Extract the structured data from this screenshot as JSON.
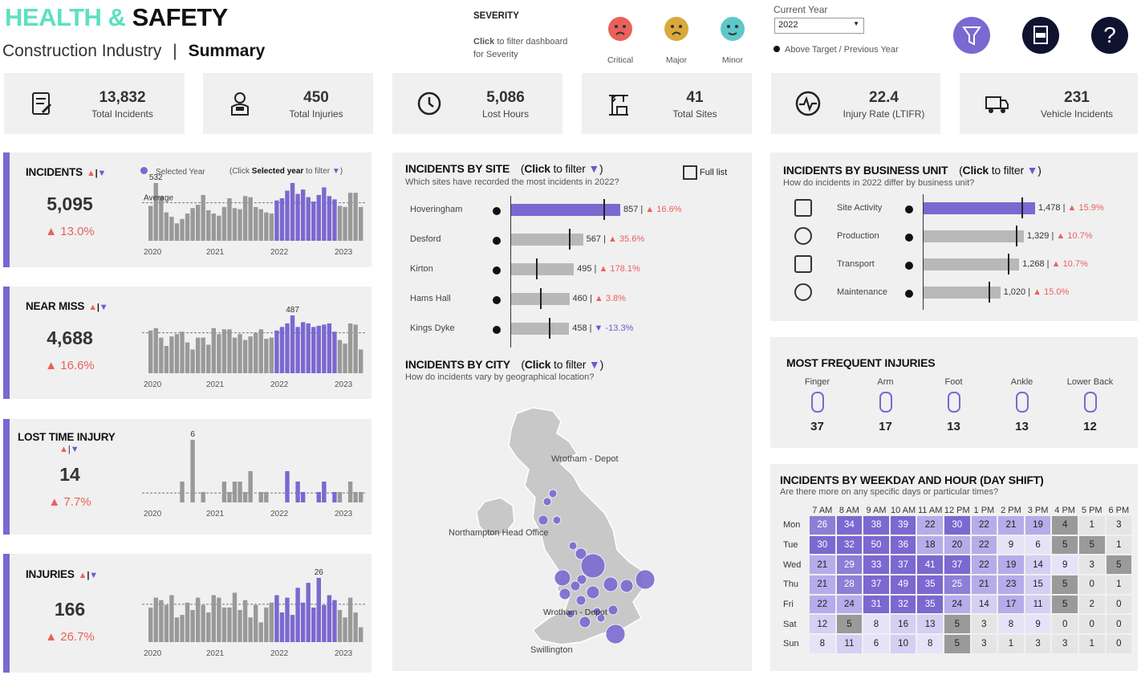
{
  "header": {
    "title_a": "HEALTH",
    "title_amp": "&",
    "title_b": "SAFETY",
    "subtitle": "Construction Industry",
    "sep": "|",
    "page": "Summary"
  },
  "severity": {
    "title": "SEVERITY",
    "help_bold": "Click",
    "help_rest": " to filter dashboard",
    "help_line2": "for Severity",
    "items": [
      {
        "label": "Critical",
        "color": "#e9615b"
      },
      {
        "label": "Major",
        "color": "#d9a93a"
      },
      {
        "label": "Minor",
        "color": "#5ec8c8"
      }
    ]
  },
  "year": {
    "label": "Current Year",
    "value": "2022",
    "legend": "Above Target / Previous Year"
  },
  "icons": {
    "filter": "filter-icon",
    "pdf": "pdf-icon",
    "help": "help-icon"
  },
  "kpis": [
    {
      "value": "13,832",
      "label": "Total Incidents",
      "icon": "report-icon"
    },
    {
      "value": "450",
      "label": "Total Injuries",
      "icon": "injured-worker-icon"
    },
    {
      "value": "5,086",
      "label": "Lost Hours",
      "icon": "clock-icon"
    },
    {
      "value": "41",
      "label": "Total Sites",
      "icon": "crane-icon"
    },
    {
      "value": "22.4",
      "label": "Injury Rate (LTIFR)",
      "icon": "pulse-icon"
    },
    {
      "value": "231",
      "label": "Vehicle Incidents",
      "icon": "truck-icon"
    }
  ],
  "left_panels": [
    {
      "title": "INCIDENTS",
      "value": "5,095",
      "pct": "13.0%",
      "peak": "532",
      "avg_label": "Average",
      "legend": "Selected Year",
      "hint_a": "(Click ",
      "hint_b": "Selected year",
      "hint_c": " to filter "
    },
    {
      "title": "NEAR MISS",
      "value": "4,688",
      "pct": "16.6%",
      "peak": "487"
    },
    {
      "title": "LOST TIME INJURY",
      "value": "14",
      "pct": "7.7%",
      "peak": "6"
    },
    {
      "title": "INJURIES",
      "value": "166",
      "pct": "26.7%",
      "peak": "26"
    }
  ],
  "years": [
    "2020",
    "2021",
    "2022",
    "2023"
  ],
  "arrows": {
    "up": "▲",
    "sep": "|",
    "down": "▼"
  },
  "chart_data": [
    {
      "type": "bar",
      "title": "INCIDENTS",
      "x": "monthly",
      "highlight_year": "2022",
      "values": [
        320,
        530,
        410,
        260,
        220,
        160,
        200,
        250,
        300,
        330,
        420,
        280,
        250,
        230,
        310,
        390,
        300,
        290,
        410,
        400,
        310,
        290,
        260,
        250,
        370,
        390,
        460,
        530,
        430,
        470,
        400,
        360,
        420,
        490,
        410,
        380,
        320,
        310,
        440,
        440,
        310
      ]
    },
    {
      "type": "bar",
      "title": "NEAR MISS",
      "values": [
        360,
        380,
        300,
        230,
        310,
        330,
        350,
        260,
        200,
        300,
        300,
        240,
        380,
        330,
        370,
        370,
        300,
        330,
        280,
        310,
        340,
        370,
        290,
        300,
        360,
        390,
        420,
        487,
        390,
        430,
        420,
        390,
        400,
        410,
        420,
        350,
        280,
        250,
        420,
        410,
        200
      ]
    },
    {
      "type": "bar",
      "title": "LOST TIME INJURY",
      "values": [
        0,
        0,
        0,
        0,
        0,
        0,
        2,
        0,
        6,
        0,
        1,
        0,
        0,
        0,
        2,
        1,
        2,
        2,
        1,
        3,
        0,
        1,
        1,
        0,
        0,
        0,
        3,
        0,
        2,
        1,
        0,
        0,
        1,
        2,
        0,
        1,
        1,
        0,
        2,
        1,
        1
      ]
    },
    {
      "type": "bar",
      "title": "INJURIES",
      "values": [
        14,
        18,
        17,
        15,
        19,
        10,
        11,
        16,
        13,
        18,
        15,
        12,
        19,
        18,
        14,
        14,
        20,
        13,
        17,
        10,
        15,
        8,
        14,
        16,
        19,
        12,
        18,
        11,
        22,
        16,
        24,
        14,
        26,
        15,
        19,
        17,
        13,
        10,
        18,
        12,
        6
      ]
    },
    {
      "type": "bar",
      "title": "INCIDENTS BY SITE",
      "categories": [
        "Hoveringham",
        "Desford",
        "Kirton",
        "Hams Hall",
        "Kings Dyke"
      ],
      "values": [
        857,
        567,
        495,
        460,
        458
      ],
      "change": [
        "16.6%",
        "35.6%",
        "178.1%",
        "3.8%",
        "-13.3%"
      ],
      "labels": [
        "857",
        "567",
        "495",
        "460",
        "458"
      ]
    },
    {
      "type": "bar",
      "title": "INCIDENTS BY BUSINESS UNIT",
      "categories": [
        "Site Activity",
        "Production",
        "Transport",
        "Maintenance"
      ],
      "values": [
        1478,
        1329,
        1268,
        1020
      ],
      "change": [
        "15.9%",
        "10.7%",
        "10.7%",
        "15.0%"
      ],
      "labels": [
        "1,478",
        "1,329",
        "1,268",
        "1,020"
      ]
    },
    {
      "type": "heatmap",
      "title": "INCIDENTS BY WEEKDAY AND HOUR  (DAY SHIFT)",
      "columns": [
        "7 AM",
        "8 AM",
        "9 AM",
        "10 AM",
        "11 AM",
        "12 PM",
        "1 PM",
        "2 PM",
        "3 PM",
        "4 PM",
        "5 PM",
        "6 PM"
      ],
      "rows": [
        "Mon",
        "Tue",
        "Wed",
        "Thu",
        "Fri",
        "Sat",
        "Sun"
      ],
      "values": [
        [
          26,
          34,
          38,
          39,
          22,
          30,
          22,
          21,
          19,
          4,
          1,
          3
        ],
        [
          30,
          32,
          50,
          36,
          18,
          20,
          22,
          9,
          6,
          5,
          5,
          1
        ],
        [
          21,
          29,
          33,
          37,
          41,
          37,
          22,
          19,
          14,
          9,
          3,
          5
        ],
        [
          21,
          28,
          37,
          49,
          35,
          25,
          21,
          23,
          15,
          5,
          0,
          1
        ],
        [
          22,
          24,
          31,
          32,
          35,
          24,
          14,
          17,
          11,
          5,
          2,
          0
        ],
        [
          12,
          5,
          8,
          16,
          13,
          5,
          3,
          8,
          9,
          0,
          0,
          0
        ],
        [
          8,
          11,
          6,
          10,
          8,
          5,
          3,
          1,
          3,
          3,
          1,
          0
        ]
      ]
    }
  ],
  "site": {
    "title": "INCIDENTS BY SITE",
    "hint_a": "(",
    "hint_b": "Click",
    "hint_c": " to filter ",
    "question": "Which sites have recorded the most incidents in 2022?",
    "full_list": "Full list"
  },
  "city": {
    "title": "INCIDENTS BY CITY",
    "hint_a": "(",
    "hint_b": "Click",
    "hint_c": " to filter ",
    "question": "How do incidents vary by geographical location?",
    "labels": [
      "Wrotham - Depot",
      "Northampton Head Office",
      "Swillington"
    ]
  },
  "bu": {
    "title": "INCIDENTS BY BUSINESS UNIT",
    "hint_a": "(",
    "hint_b": "Click",
    "hint_c": " to filter ",
    "question": "How do incidents in 2022 differ by business unit?"
  },
  "injuries": {
    "title": "MOST FREQUENT INJURIES",
    "items": [
      {
        "label": "Finger",
        "value": "37",
        "icon": "finger-icon"
      },
      {
        "label": "Arm",
        "value": "17",
        "icon": "arm-icon"
      },
      {
        "label": "Foot",
        "value": "13",
        "icon": "foot-icon"
      },
      {
        "label": "Ankle",
        "value": "13",
        "icon": "ankle-icon"
      },
      {
        "label": "Lower Back",
        "value": "12",
        "icon": "lower-back-icon"
      }
    ]
  },
  "heat": {
    "title": "INCIDENTS BY WEEKDAY AND HOUR  (DAY SHIFT)",
    "question": "Are there more on any specific days or particular times?"
  },
  "colors": {
    "purple": "#7b68d0",
    "grey": "#999999",
    "red": "#e9615b",
    "teal": "#5ee0c0"
  }
}
